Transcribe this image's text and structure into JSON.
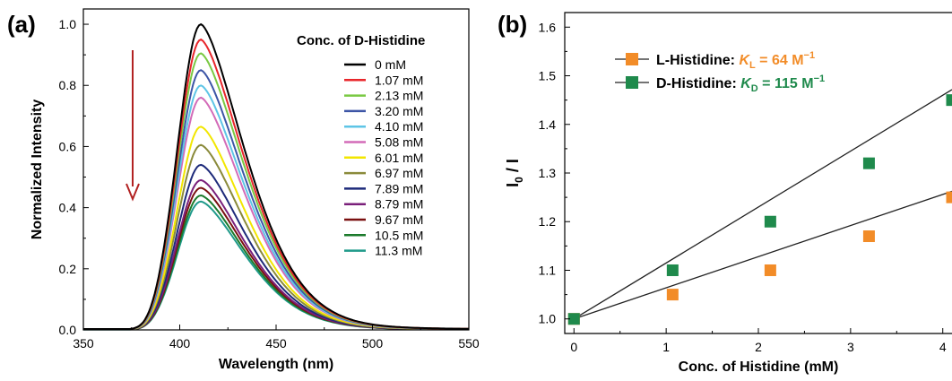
{
  "chart_data": [
    {
      "panel_label": "(a)",
      "type": "line",
      "xlabel": "Wavelength (nm)",
      "ylabel": "Normalized Intensity",
      "xlim": [
        350,
        550
      ],
      "ylim": [
        0,
        1.05
      ],
      "xticks": [
        "350",
        "400",
        "450",
        "500",
        "550"
      ],
      "yticks": [
        "0.0",
        "0.2",
        "0.4",
        "0.6",
        "0.8",
        "1.0"
      ],
      "legend_title": "Conc. of D-Histidine",
      "legend_position": "top-right",
      "series": [
        {
          "name": "0 mM",
          "peak": 1.0,
          "color": "#000000"
        },
        {
          "name": "1.07 mM",
          "peak": 0.95,
          "color": "#e8262b"
        },
        {
          "name": "2.13 mM",
          "peak": 0.905,
          "color": "#7ac943"
        },
        {
          "name": "3.20 mM",
          "peak": 0.85,
          "color": "#3d55a6"
        },
        {
          "name": "4.10 mM",
          "peak": 0.8,
          "color": "#5ec5e6"
        },
        {
          "name": "5.08 mM",
          "peak": 0.76,
          "color": "#d36bb8"
        },
        {
          "name": "6.01 mM",
          "peak": 0.665,
          "color": "#f2e600"
        },
        {
          "name": "6.97 mM",
          "peak": 0.605,
          "color": "#8a8a3a"
        },
        {
          "name": "7.89 mM",
          "peak": 0.54,
          "color": "#1d2a7a"
        },
        {
          "name": "8.79 mM",
          "peak": 0.49,
          "color": "#7a1f7a"
        },
        {
          "name": "9.67 mM",
          "peak": 0.465,
          "color": "#7a1010"
        },
        {
          "name": "10.5 mM",
          "peak": 0.44,
          "color": "#1b7a2b"
        },
        {
          "name": "11.3 mM",
          "peak": 0.42,
          "color": "#1f9a8a"
        }
      ],
      "peak_wavelength": 411,
      "arrow_color": "#b22222"
    },
    {
      "panel_label": "(b)",
      "type": "scatter",
      "xlabel": "Conc. of Histidine (mM)",
      "ylabel_main": "I",
      "ylabel_sub": "0",
      "ylabel_rest": " / I",
      "xlim": [
        -0.1,
        4.1
      ],
      "ylim": [
        0.97,
        1.63
      ],
      "xticks": [
        "0",
        "1",
        "2",
        "3",
        "4"
      ],
      "yticks": [
        "1.0",
        "1.1",
        "1.2",
        "1.3",
        "1.4",
        "1.5",
        "1.6"
      ],
      "legend_position": "top-left",
      "series": [
        {
          "label_text": "L-Histidine: ",
          "k_symbol": "K",
          "k_sub": "L",
          "k_value": " = 64 M",
          "k_exp": "−1",
          "color": "#f28c28",
          "x": [
            0,
            1.07,
            2.13,
            3.2,
            4.1
          ],
          "y": [
            1.0,
            1.05,
            1.1,
            1.17,
            1.25
          ],
          "fit_slope": 0.064
        },
        {
          "label_text": "D-Histidine: ",
          "k_symbol": "K",
          "k_sub": "D",
          "k_value": " = 115 M",
          "k_exp": "−1",
          "color": "#1f8a4c",
          "x": [
            0,
            1.07,
            2.13,
            3.2,
            4.1
          ],
          "y": [
            1.0,
            1.1,
            1.2,
            1.32,
            1.45
          ],
          "fit_slope": 0.115
        }
      ]
    }
  ]
}
